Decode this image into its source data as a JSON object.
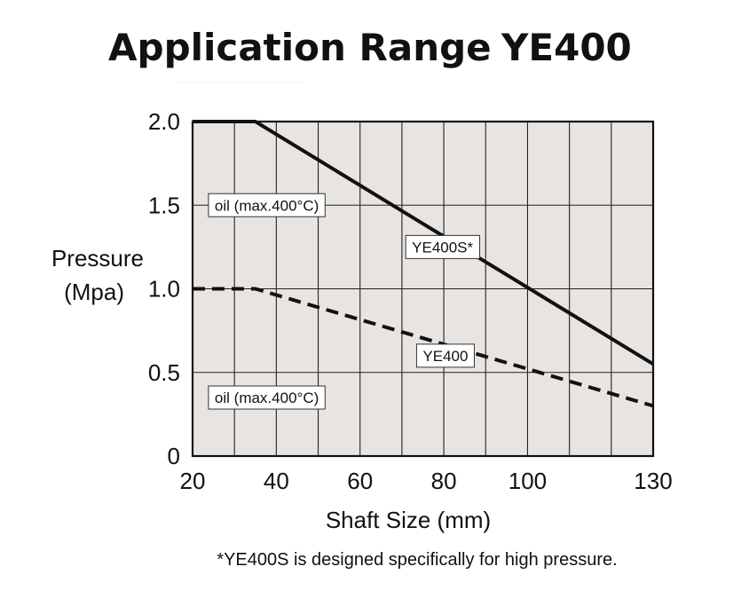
{
  "chart_data": {
    "type": "line",
    "title": "Application Range",
    "title_model": "YE400",
    "xlabel": "Shaft Size (mm)",
    "ylabel_line1": "Pressure",
    "ylabel_line2": "(Mpa)",
    "xlim": [
      20,
      130
    ],
    "ylim": [
      0,
      2.0
    ],
    "x_ticks": [
      20,
      40,
      60,
      80,
      100,
      130
    ],
    "x_tick_labels": [
      "20",
      "40",
      "60",
      "80",
      "100",
      "130"
    ],
    "y_ticks": [
      0,
      0.5,
      1.0,
      1.5,
      2.0
    ],
    "y_tick_labels": [
      "0",
      "0.5",
      "1.0",
      "1.5",
      "2.0"
    ],
    "x_gridlines": [
      30,
      40,
      50,
      60,
      70,
      80,
      90,
      100,
      110,
      120
    ],
    "y_gridlines": [
      0.5,
      1.0,
      1.5
    ],
    "grid": true,
    "plot_background": "#e8e4e1",
    "series": [
      {
        "key": "ye400s",
        "style": "solid",
        "color": "#111111",
        "x": [
          20,
          35,
          130
        ],
        "y": [
          2.0,
          2.0,
          0.55
        ]
      },
      {
        "key": "ye400",
        "style": "dashed",
        "color": "#111111",
        "x": [
          20,
          35,
          130
        ],
        "y": [
          1.0,
          1.0,
          0.3
        ]
      }
    ],
    "annotations": [
      {
        "key": "oil-upper",
        "text": "oil (max.400°C)",
        "x": 23.8,
        "y": 1.5
      },
      {
        "key": "ye400s-label",
        "text": "YE400S*",
        "x": 70.9,
        "y": 1.25
      },
      {
        "key": "ye400-label",
        "text": "YE400",
        "x": 73.5,
        "y": 0.6
      },
      {
        "key": "oil-lower",
        "text": "oil (max.400°C)",
        "x": 23.8,
        "y": 0.35
      }
    ],
    "footnote": "*YE400S is designed specifically for high pressure."
  }
}
